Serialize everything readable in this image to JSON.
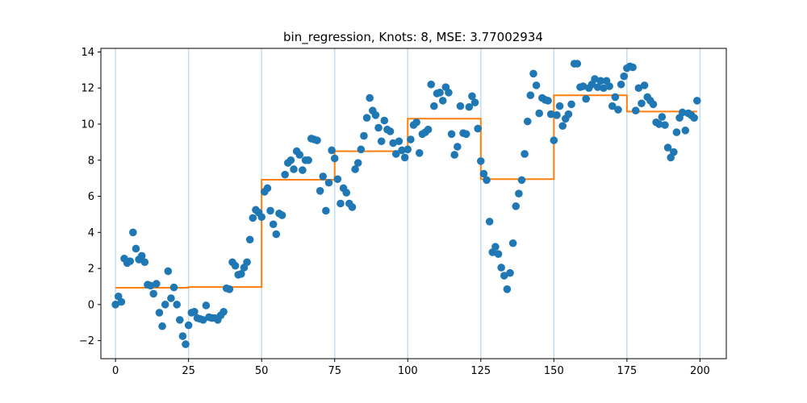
{
  "chart_data": {
    "type": "scatter",
    "title": "bin_regression, Knots: 8, MSE: 3.77002934",
    "xlabel": "",
    "ylabel": "",
    "xlim": [
      -5,
      209
    ],
    "ylim": [
      -3,
      14.2
    ],
    "xticks": [
      0,
      25,
      50,
      75,
      100,
      125,
      150,
      175,
      200
    ],
    "yticks": [
      -2,
      0,
      2,
      4,
      6,
      8,
      10,
      12,
      14
    ],
    "grid": false,
    "legend": "none",
    "knots": [
      0,
      25,
      50,
      75,
      100,
      125,
      150,
      175,
      200
    ],
    "colors": {
      "points": "#1f77b4",
      "fit": "#ff7f0e",
      "knots": "#a6cee3"
    },
    "series": [
      {
        "kind": "scatter",
        "x": [
          0,
          1,
          2,
          3,
          4,
          5,
          6,
          7,
          8,
          9,
          10,
          11,
          12,
          13,
          14,
          15,
          16,
          17,
          18,
          19,
          20,
          21,
          22,
          23,
          24,
          25,
          26,
          27,
          28,
          29,
          30,
          31,
          32,
          33,
          34,
          35,
          36,
          37,
          38,
          39,
          40,
          41,
          42,
          43,
          44,
          45,
          46,
          47,
          48,
          49,
          50,
          51,
          52,
          53,
          54,
          55,
          56,
          57,
          58,
          59,
          60,
          61,
          62,
          63,
          64,
          65,
          66,
          67,
          68,
          69,
          70,
          71,
          72,
          73,
          74,
          75,
          76,
          77,
          78,
          79,
          80,
          81,
          82,
          83,
          84,
          85,
          86,
          87,
          88,
          89,
          90,
          91,
          92,
          93,
          94,
          95,
          96,
          97,
          98,
          99,
          100,
          101,
          102,
          103,
          104,
          105,
          106,
          107,
          108,
          109,
          110,
          111,
          112,
          113,
          114,
          115,
          116,
          117,
          118,
          119,
          120,
          121,
          122,
          123,
          124,
          125,
          126,
          127,
          128,
          129,
          130,
          131,
          132,
          133,
          134,
          135,
          136,
          137,
          138,
          139,
          140,
          141,
          142,
          143,
          144,
          145,
          146,
          147,
          148,
          149,
          150,
          151,
          152,
          153,
          154,
          155,
          156,
          157,
          158,
          159,
          160,
          161,
          162,
          163,
          164,
          165,
          166,
          167,
          168,
          169,
          170,
          171,
          172,
          173,
          174,
          175,
          176,
          177,
          178,
          179,
          180,
          181,
          182,
          183,
          184,
          185,
          186,
          187,
          188,
          189,
          190,
          191,
          192,
          193,
          194,
          195,
          196,
          197,
          198,
          199
        ],
        "y": [
          0.0,
          0.45,
          0.15,
          2.55,
          2.3,
          2.4,
          4.0,
          3.1,
          2.5,
          2.7,
          2.35,
          1.1,
          1.05,
          0.6,
          1.15,
          -0.45,
          -1.2,
          0.0,
          1.85,
          0.35,
          0.95,
          0.0,
          -0.85,
          -1.75,
          -2.2,
          -1.15,
          -0.45,
          -0.4,
          -0.75,
          -0.8,
          -0.85,
          -0.05,
          -0.7,
          -0.75,
          -0.75,
          -0.85,
          -0.6,
          -0.4,
          0.9,
          0.85,
          2.35,
          2.15,
          1.65,
          1.7,
          2.05,
          2.35,
          3.6,
          4.8,
          5.25,
          5.1,
          4.85,
          6.25,
          6.45,
          5.2,
          4.45,
          3.9,
          5.05,
          4.95,
          7.2,
          7.85,
          8.0,
          7.5,
          8.5,
          8.3,
          7.45,
          8.0,
          8.0,
          9.2,
          9.15,
          9.1,
          6.3,
          7.1,
          5.2,
          6.75,
          8.55,
          8.1,
          6.95,
          5.6,
          6.45,
          6.2,
          5.6,
          5.4,
          7.5,
          7.85,
          8.6,
          9.35,
          10.35,
          11.45,
          10.75,
          10.5,
          9.8,
          9.05,
          10.2,
          9.7,
          9.6,
          8.95,
          8.35,
          9.05,
          8.55,
          8.15,
          8.6,
          9.15,
          9.95,
          10.1,
          8.4,
          9.45,
          9.55,
          9.7,
          12.2,
          11.0,
          11.7,
          11.75,
          11.3,
          12.05,
          11.75,
          9.45,
          8.3,
          8.75,
          11.0,
          9.5,
          9.45,
          10.95,
          11.55,
          11.2,
          9.75,
          7.95,
          7.25,
          6.9,
          4.6,
          2.9,
          3.2,
          2.8,
          2.05,
          1.6,
          0.85,
          1.75,
          3.4,
          5.45,
          6.15,
          6.9,
          8.35,
          10.15,
          11.6,
          12.8,
          12.15,
          10.6,
          11.45,
          11.35,
          11.3,
          10.55,
          9.1,
          10.5,
          11.0,
          9.9,
          10.3,
          10.55,
          11.1,
          13.35,
          13.35,
          12.05,
          12.1,
          11.4,
          12.0,
          12.2,
          12.5,
          12.05,
          12.4,
          12.0,
          12.4,
          12.1,
          11.0,
          11.5,
          10.8,
          12.2,
          12.65,
          13.1,
          13.2,
          13.15,
          10.75,
          12.0,
          11.15,
          12.15,
          11.5,
          11.3,
          11.1,
          10.1,
          10.0,
          10.4,
          9.95,
          8.7,
          8.15,
          8.45,
          9.55,
          10.35,
          10.65,
          9.65,
          10.6,
          10.5,
          10.35,
          11.3
        ]
      },
      {
        "kind": "step",
        "bins": [
          {
            "x0": 0,
            "x1": 25,
            "y": 0.93
          },
          {
            "x0": 25,
            "x1": 50,
            "y": 0.97
          },
          {
            "x0": 50,
            "x1": 75,
            "y": 6.92
          },
          {
            "x0": 75,
            "x1": 100,
            "y": 8.5
          },
          {
            "x0": 100,
            "x1": 125,
            "y": 10.3
          },
          {
            "x0": 125,
            "x1": 150,
            "y": 6.95
          },
          {
            "x0": 150,
            "x1": 175,
            "y": 11.6
          },
          {
            "x0": 175,
            "x1": 199,
            "y": 10.7
          }
        ]
      }
    ]
  }
}
